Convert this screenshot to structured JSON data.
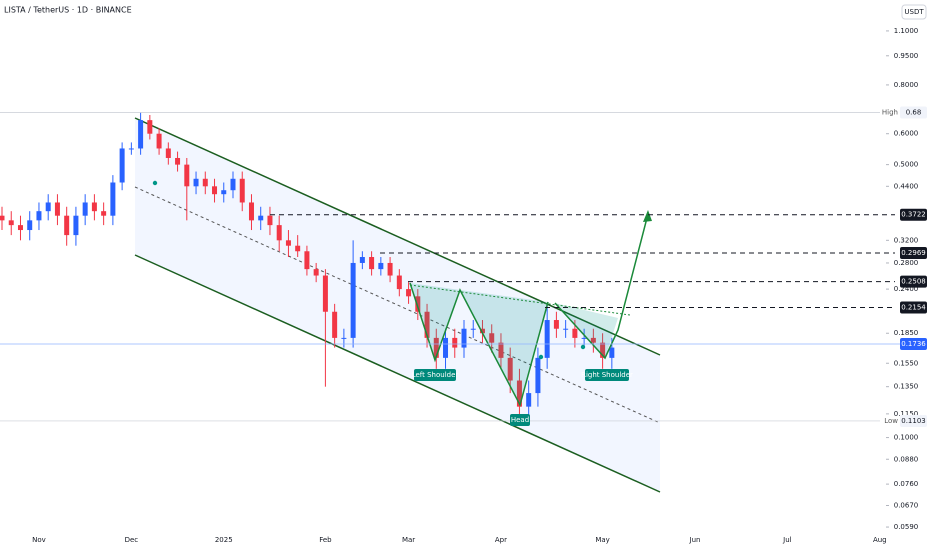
{
  "chart_data": {
    "type": "candlestick",
    "title": "LISTA / TetherUS · 1D · BINANCE",
    "currency": "USDT",
    "log_scale": true,
    "ylim": [
      0.0563,
      1.32
    ],
    "yticks": [
      {
        "value": 1.1,
        "label": "1.1000"
      },
      {
        "value": 0.95,
        "label": "0.9500"
      },
      {
        "value": 0.8,
        "label": "0.8000"
      },
      {
        "value": 0.6,
        "label": "0.6000"
      },
      {
        "value": 0.5,
        "label": "0.5000"
      },
      {
        "value": 0.44,
        "label": "0.4400"
      },
      {
        "value": 0.32,
        "label": "0.3200"
      },
      {
        "value": 0.28,
        "label": "0.2800"
      },
      {
        "value": 0.24,
        "label": "0.2400"
      },
      {
        "value": 0.185,
        "label": "0.1850"
      },
      {
        "value": 0.155,
        "label": "0.1550"
      },
      {
        "value": 0.135,
        "label": "0.1350"
      },
      {
        "value": 0.115,
        "label": "0.1150"
      },
      {
        "value": 0.1,
        "label": "0.1000"
      },
      {
        "value": 0.088,
        "label": "0.0880"
      },
      {
        "value": 0.076,
        "label": "0.0760"
      },
      {
        "value": 0.067,
        "label": "0.0670"
      },
      {
        "value": 0.059,
        "label": "0.0590"
      }
    ],
    "categories": [
      null,
      null,
      null,
      null,
      "Nov",
      null,
      null,
      null,
      null,
      null,
      null,
      null,
      null,
      null,
      "Dec",
      null,
      null,
      null,
      null,
      null,
      null,
      null,
      null,
      null,
      "2025",
      null,
      null,
      null,
      null,
      null,
      null,
      null,
      null,
      null,
      null,
      "Feb",
      null,
      null,
      null,
      null,
      null,
      null,
      null,
      null,
      "Mar",
      null,
      null,
      null,
      null,
      null,
      null,
      null,
      null,
      null,
      "Apr",
      null,
      null,
      null,
      null,
      null,
      null,
      null,
      null,
      null,
      null,
      "May",
      null,
      null,
      null,
      null,
      null,
      null,
      null,
      null,
      null,
      "Jun",
      null,
      null,
      null,
      null,
      null,
      null,
      null,
      null,
      null,
      "Jul",
      null,
      null,
      null,
      null,
      null,
      null,
      null,
      null,
      null,
      "Aug",
      null
    ],
    "up_color": "#2962ff",
    "down_color": "#f23645",
    "open": [
      0.37,
      0.36,
      0.35,
      0.34,
      0.36,
      0.38,
      0.4,
      0.37,
      0.33,
      0.37,
      0.4,
      0.38,
      0.37,
      0.45,
      0.55,
      0.55,
      0.65,
      0.6,
      0.55,
      0.52,
      0.5,
      0.44,
      0.46,
      0.44,
      0.42,
      0.43,
      0.46,
      0.4,
      0.36,
      0.37,
      0.35,
      0.32,
      0.31,
      0.3,
      0.27,
      0.26,
      0.21,
      0.18,
      0.18,
      0.28,
      0.29,
      0.27,
      0.28,
      0.26,
      0.24,
      0.23,
      0.21,
      0.18,
      0.16,
      0.18,
      0.17,
      0.19,
      0.19,
      0.185,
      0.175,
      0.16,
      0.14,
      0.12,
      0.13,
      0.16,
      0.2,
      0.19,
      0.19,
      0.18,
      0.18,
      0.175,
      0.16,
      null,
      null,
      null,
      null,
      null,
      null,
      null,
      null,
      null,
      null,
      null,
      null,
      null,
      null,
      null,
      null,
      null,
      null,
      null,
      null,
      null,
      null,
      null,
      null,
      null,
      null,
      null,
      null,
      null,
      null
    ],
    "high": [
      0.39,
      0.38,
      0.37,
      0.38,
      0.4,
      0.42,
      0.42,
      0.39,
      0.39,
      0.42,
      0.42,
      0.4,
      0.47,
      0.57,
      0.57,
      0.68,
      0.67,
      0.62,
      0.57,
      0.54,
      0.52,
      0.48,
      0.48,
      0.46,
      0.45,
      0.48,
      0.48,
      0.42,
      0.39,
      0.39,
      0.37,
      0.34,
      0.33,
      0.31,
      0.28,
      0.27,
      0.22,
      0.19,
      0.32,
      0.3,
      0.3,
      0.29,
      0.29,
      0.27,
      0.25,
      0.24,
      0.22,
      0.19,
      0.19,
      0.19,
      0.2,
      0.2,
      0.2,
      0.195,
      0.185,
      0.17,
      0.15,
      0.14,
      0.17,
      0.22,
      0.21,
      0.2,
      0.2,
      0.19,
      0.19,
      0.185,
      0.18,
      null,
      null,
      null,
      null,
      null,
      null,
      null,
      null,
      null,
      null,
      null,
      null,
      null,
      null,
      null,
      null,
      null,
      null,
      null,
      null,
      null,
      null,
      null,
      null,
      null,
      null,
      null,
      null,
      null,
      null
    ],
    "low": [
      0.34,
      0.33,
      0.32,
      0.32,
      0.34,
      0.36,
      0.35,
      0.31,
      0.31,
      0.35,
      0.36,
      0.35,
      0.35,
      0.43,
      0.53,
      0.53,
      0.58,
      0.53,
      0.5,
      0.48,
      0.36,
      0.42,
      0.42,
      0.4,
      0.4,
      0.41,
      0.38,
      0.34,
      0.34,
      0.33,
      0.3,
      0.29,
      0.29,
      0.26,
      0.25,
      0.135,
      0.17,
      0.17,
      0.17,
      0.27,
      0.26,
      0.26,
      0.25,
      0.23,
      0.22,
      0.2,
      0.17,
      0.15,
      0.15,
      0.16,
      0.16,
      0.18,
      0.175,
      0.165,
      0.15,
      0.13,
      0.11,
      0.11,
      0.12,
      0.15,
      0.18,
      0.18,
      0.17,
      0.17,
      0.165,
      0.15,
      0.15,
      null,
      null,
      null,
      null,
      null,
      null,
      null,
      null,
      null,
      null,
      null,
      null,
      null,
      null,
      null,
      null,
      null,
      null,
      null,
      null,
      null,
      null,
      null,
      null,
      null,
      null,
      null,
      null,
      null,
      null
    ],
    "close": [
      0.36,
      0.35,
      0.34,
      0.36,
      0.38,
      0.4,
      0.37,
      0.33,
      0.37,
      0.4,
      0.38,
      0.37,
      0.45,
      0.55,
      0.55,
      0.65,
      0.6,
      0.55,
      0.52,
      0.5,
      0.44,
      0.46,
      0.44,
      0.42,
      0.43,
      0.46,
      0.4,
      0.36,
      0.37,
      0.35,
      0.32,
      0.31,
      0.3,
      0.27,
      0.26,
      0.21,
      0.18,
      0.18,
      0.28,
      0.29,
      0.27,
      0.28,
      0.26,
      0.24,
      0.23,
      0.21,
      0.18,
      0.16,
      0.18,
      0.17,
      0.19,
      0.19,
      0.185,
      0.175,
      0.16,
      0.14,
      0.12,
      0.13,
      0.16,
      0.2,
      0.19,
      0.19,
      0.18,
      0.18,
      0.175,
      0.16,
      0.17,
      null,
      null,
      null,
      null,
      null,
      null,
      null,
      null,
      null,
      null,
      null,
      null,
      null,
      null,
      null,
      null,
      null,
      null,
      null,
      null,
      null,
      null,
      null,
      null,
      null,
      null,
      null,
      null,
      null,
      null
    ],
    "levels": [
      0.3722,
      0.2969,
      0.2508,
      0.2154
    ],
    "last_price": 0.1736,
    "high_marker": {
      "label": "High",
      "value": 0.68
    },
    "low_marker": {
      "label": "Low",
      "value": 0.1103
    },
    "annotations": [
      "Left Shoulder",
      "Head",
      "Right Shoulder"
    ]
  }
}
